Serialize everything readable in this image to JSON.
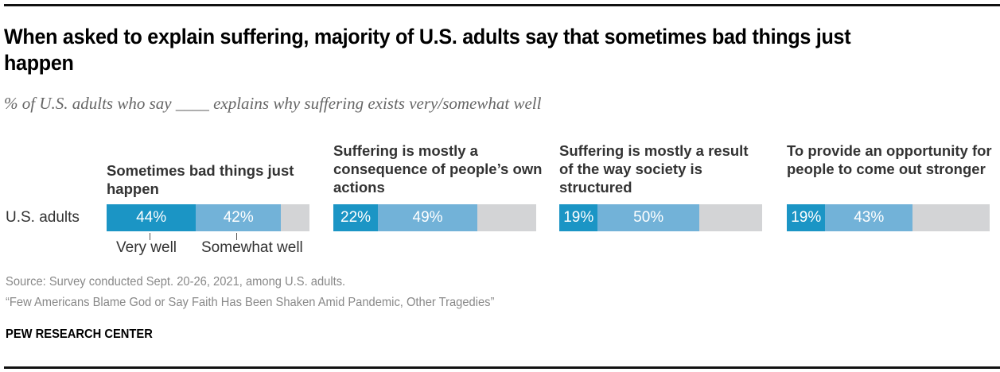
{
  "header": {
    "title": "When asked to explain suffering, majority of U.S. adults say that sometimes bad things just happen",
    "subtitle": "% of U.S. adults who say ____ explains why suffering exists very/somewhat well"
  },
  "chart_data": {
    "type": "bar",
    "orientation": "horizontal-stacked",
    "row_label": "U.S. adults",
    "series": [
      {
        "name": "Very well",
        "color": "#1b95c5"
      },
      {
        "name": "Somewhat well",
        "color": "#72b2d8"
      },
      {
        "name": "Remainder",
        "color": "#d3d4d6"
      }
    ],
    "panels": [
      {
        "title": "Sometimes bad things just happen",
        "very_well": 44,
        "somewhat_well": 42,
        "very_well_label": "44%",
        "somewhat_well_label": "42%"
      },
      {
        "title": "Suffering is mostly a consequence of people’s own actions",
        "very_well": 22,
        "somewhat_well": 49,
        "very_well_label": "22%",
        "somewhat_well_label": "49%"
      },
      {
        "title": "Suffering is mostly a result of the way society is structured",
        "very_well": 19,
        "somewhat_well": 50,
        "very_well_label": "19%",
        "somewhat_well_label": "50%"
      },
      {
        "title": "To provide an opportunity for people to come out stronger",
        "very_well": 19,
        "somewhat_well": 43,
        "very_well_label": "19%",
        "somewhat_well_label": "43%"
      }
    ],
    "legend": {
      "very_well": "Very well",
      "somewhat_well": "Somewhat well",
      "placement": "below-first-bar"
    },
    "xlim": [
      0,
      100
    ]
  },
  "footer": {
    "source": "Source: Survey conducted Sept. 20-26, 2021, among U.S. adults.",
    "note": "“Few Americans Blame God or Say Faith Has Been Shaken Amid Pandemic, Other Tragedies”",
    "brand": "PEW RESEARCH CENTER"
  }
}
